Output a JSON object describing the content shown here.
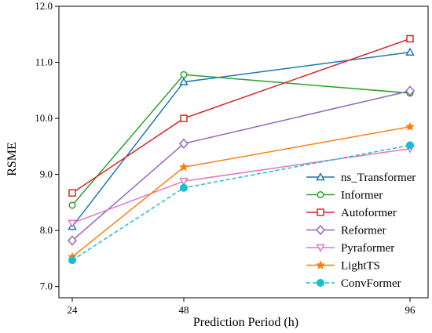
{
  "chart_data": {
    "type": "line",
    "xlabel": "Prediction Period (h)",
    "ylabel": "RSME",
    "x": [
      24,
      48,
      96
    ],
    "x_tick_labels": [
      "24",
      "48",
      "96"
    ],
    "ylim": [
      6.8,
      12.0
    ],
    "y_ticks": [
      7.0,
      8.0,
      9.0,
      10.0,
      11.0,
      12.0
    ],
    "y_tick_labels": [
      "7.0",
      "8.0",
      "9.0",
      "10.0",
      "11.0",
      "12.0"
    ],
    "grid": false,
    "legend_position": "lower-right",
    "series": [
      {
        "name": "ns_Transformer",
        "values": [
          8.07,
          10.65,
          11.18
        ],
        "color": "#1f77b4",
        "marker": "triangle-up",
        "dash": "solid"
      },
      {
        "name": "Informer",
        "values": [
          8.45,
          10.78,
          10.45
        ],
        "color": "#2ca02c",
        "marker": "circle-open",
        "dash": "solid"
      },
      {
        "name": "Autoformer",
        "values": [
          8.67,
          10.0,
          11.42
        ],
        "color": "#d62728",
        "marker": "square-open",
        "dash": "solid"
      },
      {
        "name": "Reformer",
        "values": [
          7.82,
          9.55,
          10.49
        ],
        "color": "#9467bd",
        "marker": "diamond-open",
        "dash": "solid"
      },
      {
        "name": "Pyraformer",
        "values": [
          8.13,
          8.88,
          9.46
        ],
        "color": "#e377c2",
        "marker": "triangle-down",
        "dash": "solid"
      },
      {
        "name": "LightTS",
        "values": [
          7.53,
          9.13,
          9.85
        ],
        "color": "#ff7f0e",
        "marker": "star",
        "dash": "solid"
      },
      {
        "name": "ConvFormer",
        "values": [
          7.47,
          8.76,
          9.52
        ],
        "color": "#17becf",
        "marker": "circle-filled",
        "dash": "dashed"
      }
    ]
  }
}
